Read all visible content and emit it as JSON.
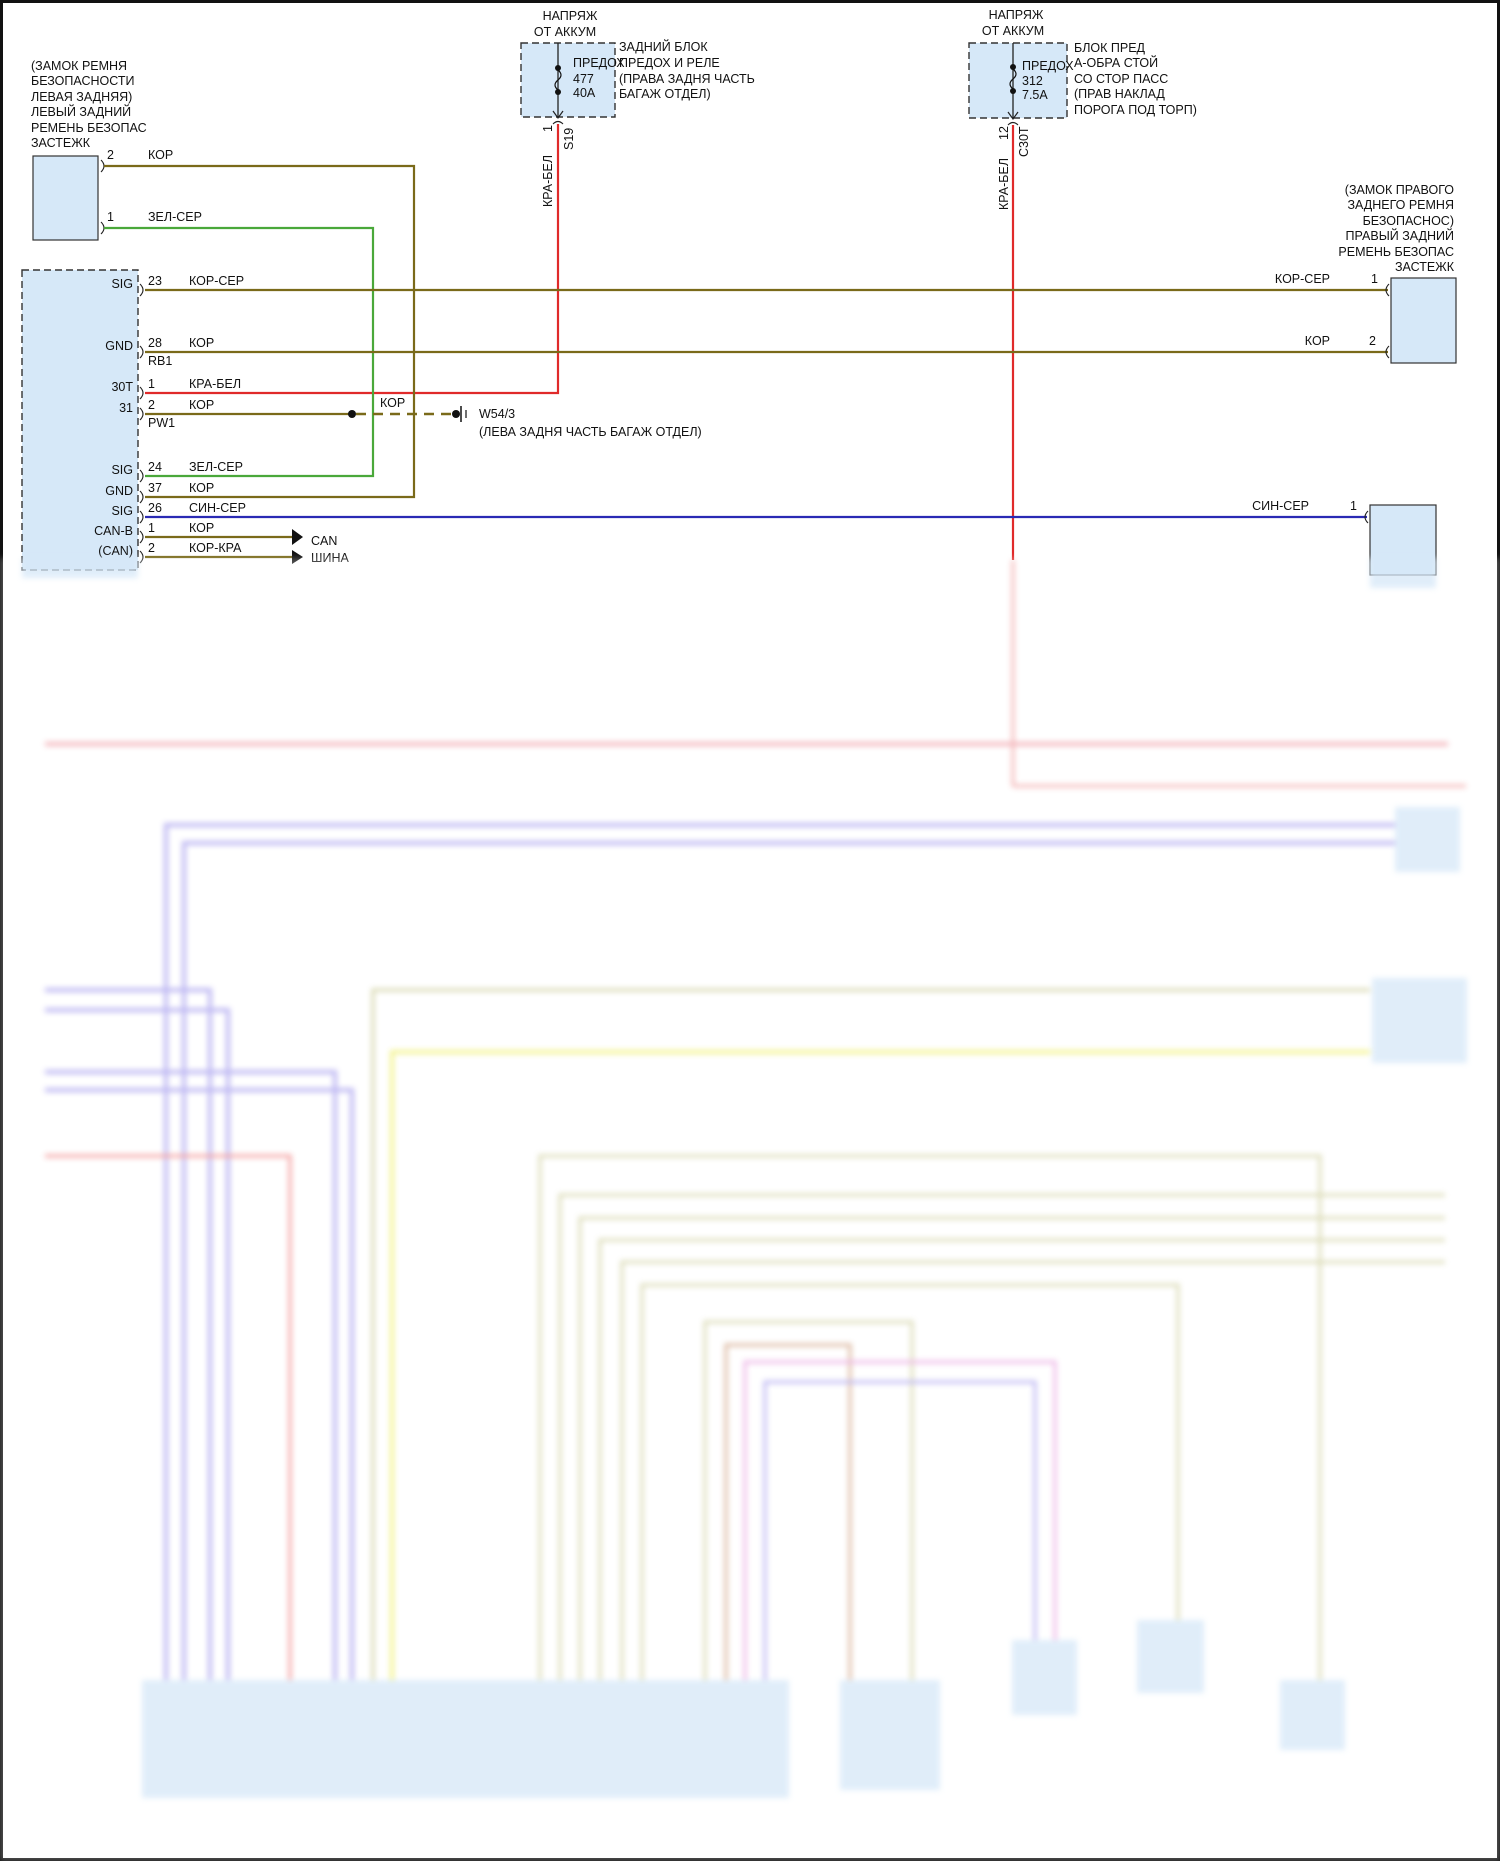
{
  "fuse_left": {
    "supply": [
      "НАПРЯЖ",
      "ОТ АККУМ"
    ],
    "fuse_label": "ПРЕДОХ",
    "fuse_number": "477",
    "fuse_rating": "40A",
    "location": [
      "ЗАДНИЙ БЛОК",
      "ПРЕДОХ И РЕЛЕ",
      "(ПРАВА ЗАДНЯ ЧАСТЬ",
      "БАГАЖ ОТДЕЛ)"
    ],
    "pin": "1",
    "connector": "S19",
    "wire": "КРА-БЕЛ"
  },
  "fuse_right": {
    "supply": [
      "НАПРЯЖ",
      "ОТ АККУМ"
    ],
    "fuse_label": "ПРЕДОХ",
    "fuse_number": "312",
    "fuse_rating": "7.5A",
    "location": [
      "БЛОК ПРЕД",
      "А-ОБРА СТОЙ",
      "СО СТОР ПАСС",
      "(ПРАВ НАКЛАД",
      "ПОРОГА ПОД ТОРП)"
    ],
    "pin": "12",
    "connector": "C30T",
    "wire": "КРА-БЕЛ"
  },
  "left_buckle": {
    "label": [
      "(ЗАМОК РЕМНЯ",
      "БЕЗОПАСНОСТИ",
      "ЛЕВАЯ ЗАДНЯЯ)",
      "ЛЕВЫЙ ЗАДНИЙ",
      "РЕМЕНЬ БЕЗОПАС",
      "ЗАСТЕЖК"
    ],
    "pins": [
      {
        "pin": "2",
        "wire": "КОР"
      },
      {
        "pin": "1",
        "wire": "ЗЕЛ-СЕР"
      }
    ]
  },
  "right_buckle": {
    "label": [
      "(ЗАМОК ПРАВОГО",
      "ЗАДНЕГО РЕМНЯ",
      "БЕЗОПАСНОС)",
      "ПРАВЫЙ ЗАДНИЙ",
      "РЕМЕНЬ БЕЗОПАС",
      "ЗАСТЕЖК"
    ],
    "pins": [
      {
        "pin": "1",
        "wire": "КОР-СЕР"
      },
      {
        "pin": "2",
        "wire": "КОР"
      }
    ]
  },
  "blue_device": {
    "pin": "1",
    "wire": "СИН-СЕР"
  },
  "module": {
    "rows": [
      {
        "func": "SIG",
        "pin": "23",
        "wire": "КОР-СЕР",
        "sub": ""
      },
      {
        "func": "GND",
        "pin": "28",
        "wire": "КОР",
        "sub": "RB1"
      },
      {
        "func": "30T",
        "pin": "1",
        "wire": "КРА-БЕЛ",
        "sub": ""
      },
      {
        "func": "31",
        "pin": "2",
        "wire": "КОР",
        "sub": "PW1"
      },
      {
        "func": "SIG",
        "pin": "24",
        "wire": "ЗЕЛ-СЕР",
        "sub": ""
      },
      {
        "func": "GND",
        "pin": "37",
        "wire": "КОР",
        "sub": ""
      },
      {
        "func": "SIG",
        "pin": "26",
        "wire": "СИН-СЕР",
        "sub": ""
      },
      {
        "func": "CAN-B",
        "pin": "1",
        "wire": "КОР",
        "sub": ""
      },
      {
        "func": "(CAN)",
        "pin": "2",
        "wire": "КОР-КРА",
        "sub": ""
      }
    ],
    "can_label": [
      "CAN",
      "ШИНА"
    ]
  },
  "ground": {
    "wire": "КОР",
    "id": "W54/3",
    "location": "(ЛЕВА ЗАДНЯ ЧАСТЬ БАГАЖ ОТДЕЛ)"
  },
  "colors": {
    "brown_wire": "#7a6a1a",
    "green_wire": "#4aa83a",
    "red_wire": "#e02a2a",
    "blue_wire": "#2a2ab4",
    "component_fill": "#d6e8f8"
  }
}
